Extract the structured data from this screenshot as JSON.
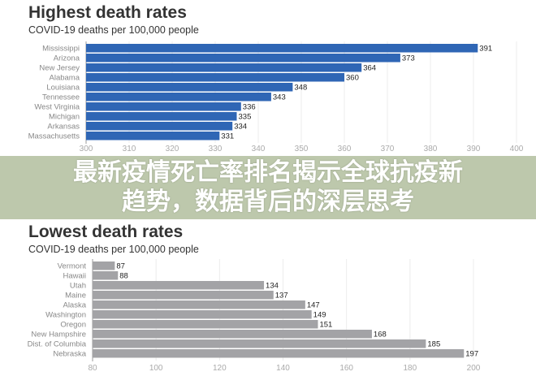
{
  "chart_data": [
    {
      "type": "bar",
      "orientation": "horizontal",
      "title": "Highest death rates",
      "subtitle": "COVID-19 deaths per 100,000 people",
      "categories": [
        "Mississippi",
        "Arizona",
        "New Jersey",
        "Alabama",
        "Louisiana",
        "Tennessee",
        "West Virginia",
        "Michigan",
        "Arkansas",
        "Massachusetts"
      ],
      "values": [
        391,
        373,
        364,
        360,
        348,
        343,
        336,
        335,
        334,
        331
      ],
      "xlim": [
        300,
        400
      ],
      "ticks": [
        300,
        310,
        320,
        330,
        340,
        350,
        360,
        370,
        380,
        390,
        400
      ],
      "color": "#2f66b5",
      "grid": true
    },
    {
      "type": "bar",
      "orientation": "horizontal",
      "title": "Lowest death rates",
      "subtitle": "COVID-19 deaths per 100,000 people",
      "categories": [
        "Vermont",
        "Hawaii",
        "Utah",
        "Maine",
        "Alaska",
        "Washington",
        "Oregon",
        "New Hampshire",
        "Dist. of Columbia",
        "Nebraska"
      ],
      "values": [
        87,
        88,
        134,
        137,
        147,
        149,
        151,
        168,
        185,
        197
      ],
      "xlim": [
        80,
        200
      ],
      "ticks": [
        80,
        100,
        120,
        140,
        160,
        180,
        200
      ],
      "color": "#a3a3a6",
      "grid": true
    }
  ],
  "overlay": {
    "line1": "最新疫情死亡率排名揭示全球抗疫新",
    "line2": "趋势，数据背后的深层思考",
    "color": "#b2be9e"
  }
}
